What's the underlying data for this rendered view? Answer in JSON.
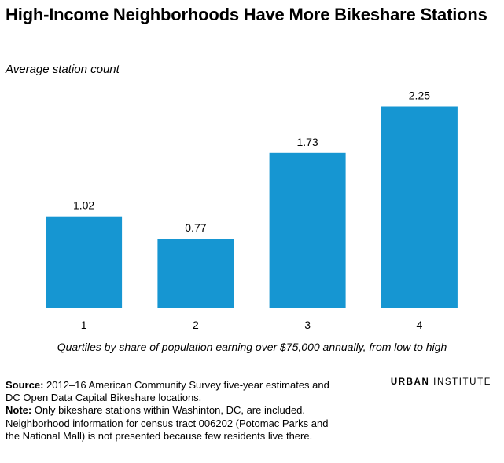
{
  "title": "High-Income Neighborhoods Have More Bikeshare Stations",
  "subtitle": "Average station count",
  "chart_data": {
    "type": "bar",
    "categories": [
      "1",
      "2",
      "3",
      "4"
    ],
    "values": [
      1.02,
      0.77,
      1.73,
      2.25
    ],
    "data_labels": [
      "1.02",
      "0.77",
      "1.73",
      "2.25"
    ],
    "title": "High-Income Neighborhoods Have More Bikeshare Stations",
    "ylabel": "Average station count",
    "xlabel": "Quartiles by share of population earning over $75,000 annually, from low to high",
    "ylim": [
      0,
      2.4
    ],
    "grid": false,
    "bar_color": "#1696d2",
    "axis_color": "#bfbfbf"
  },
  "notes": {
    "source_label": "Source:",
    "source_text": " 2012–16 American Community Survey five-year estimates and DC Open Data Capital Bikeshare locations.",
    "note_label": "Note:",
    "note_text": " Only bikeshare stations within Washinton, DC, are included. Neighborhood information for census tract 006202 (Potomac Parks and the National Mall) is not presented because few residents live there."
  },
  "logo": {
    "word1": "URBAN",
    "word2": "INSTITUTE"
  }
}
